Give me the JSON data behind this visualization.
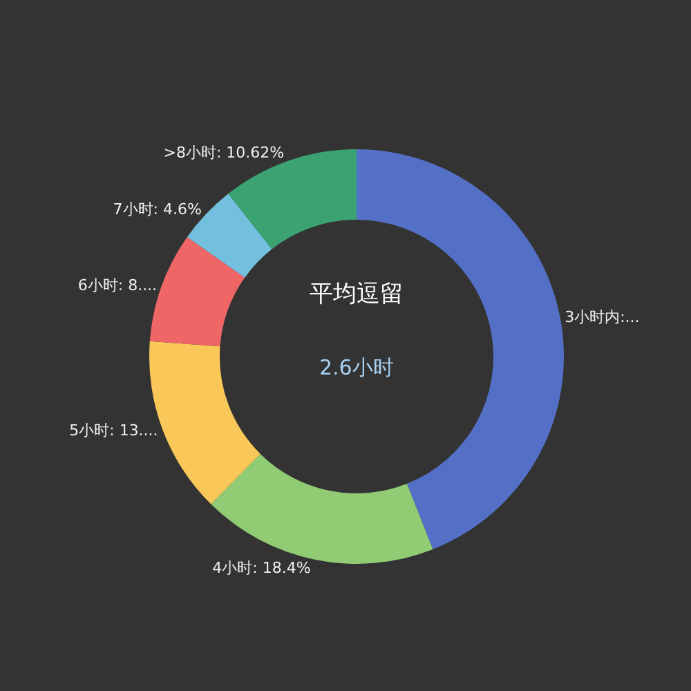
{
  "chart_data": {
    "type": "donut",
    "title": "平均逗留",
    "subtitle": "2.6小时",
    "categories": [
      "3小时内",
      "4小时",
      "5小时",
      "6小时",
      "7小时",
      ">8小时"
    ],
    "values": [
      44.0,
      18.4,
      13.78,
      8.6,
      4.6,
      10.62
    ],
    "colors": [
      "#5470c6",
      "#91cc75",
      "#fac858",
      "#ee6666",
      "#73c0de",
      "#3ba272"
    ],
    "value_labels": [
      ":...",
      ": 18.4%",
      ": 13....",
      ": 8....",
      ": 4.6%",
      ": 10.62%"
    ],
    "legend": false
  }
}
